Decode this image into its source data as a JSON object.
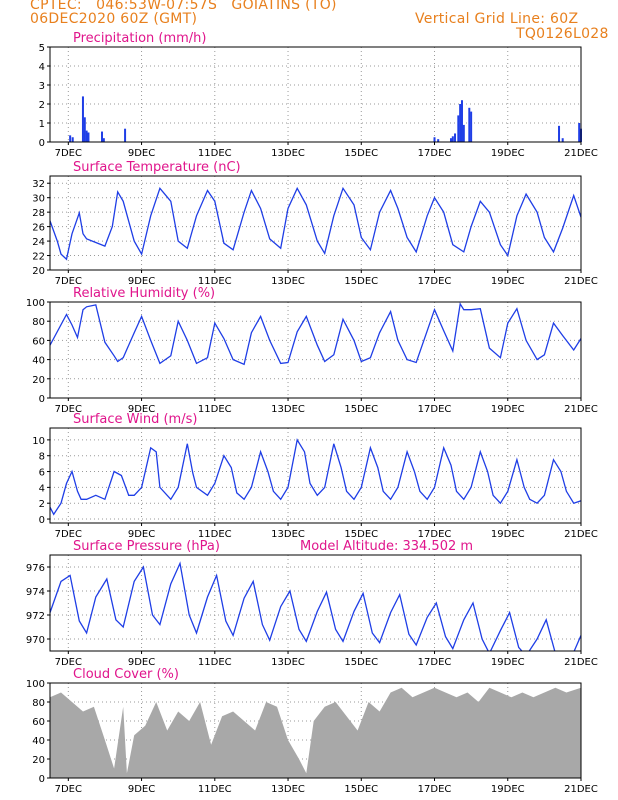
{
  "header": {
    "line1_left": "CPTEC:   046:53W-07:57S   GOIATINS (TO)",
    "line2_left": "06DEC2020 60Z (GMT)",
    "line2_right": "Vertical Grid Line: 60Z",
    "line3_right": "TQ0126L028"
  },
  "colors": {
    "header": "#e8801e",
    "title": "#e0158c",
    "series": "#1f3ee6",
    "cloud": "#a8a8a8",
    "grid": "#9a9a9a"
  },
  "x_axis": {
    "date_labels": [
      "7DEC",
      "9DEC",
      "11DEC",
      "13DEC",
      "15DEC",
      "17DEC",
      "19DEC",
      "21DEC"
    ],
    "start": "06DEC2020 12Z",
    "end": "21DEC2020 00Z"
  },
  "chart_data": [
    {
      "id": "precipitation",
      "type": "bar",
      "title": "Precipitation (mm/h)",
      "ylim": [
        0,
        5
      ],
      "yticks": [
        "0",
        "1",
        "2",
        "3",
        "4",
        "5"
      ],
      "grid": true,
      "bars": [
        {
          "day": 0.55,
          "value": 0.35
        },
        {
          "day": 0.62,
          "value": 0.25
        },
        {
          "day": 0.9,
          "value": 2.4
        },
        {
          "day": 0.95,
          "value": 1.3
        },
        {
          "day": 1.0,
          "value": 0.6
        },
        {
          "day": 1.05,
          "value": 0.5
        },
        {
          "day": 1.42,
          "value": 0.55
        },
        {
          "day": 1.47,
          "value": 0.2
        },
        {
          "day": 2.05,
          "value": 0.7
        },
        {
          "day": 10.5,
          "value": 0.25
        },
        {
          "day": 10.6,
          "value": 0.15
        },
        {
          "day": 10.95,
          "value": 0.2
        },
        {
          "day": 11.0,
          "value": 0.3
        },
        {
          "day": 11.06,
          "value": 0.45
        },
        {
          "day": 11.15,
          "value": 1.4
        },
        {
          "day": 11.2,
          "value": 2.0
        },
        {
          "day": 11.25,
          "value": 2.2
        },
        {
          "day": 11.3,
          "value": 0.9
        },
        {
          "day": 11.45,
          "value": 1.8
        },
        {
          "day": 11.5,
          "value": 1.6
        },
        {
          "day": 13.9,
          "value": 0.85
        },
        {
          "day": 14.0,
          "value": 0.2
        },
        {
          "day": 14.45,
          "value": 1.0
        },
        {
          "day": 14.5,
          "value": 0.7
        }
      ]
    },
    {
      "id": "temperature",
      "type": "line",
      "title": "Surface Temperature (nC)",
      "ylim": [
        20,
        33
      ],
      "yticks": [
        "20",
        "22",
        "24",
        "26",
        "28",
        "30",
        "32"
      ],
      "grid": true,
      "x": [
        0,
        0.2,
        0.3,
        0.45,
        0.6,
        0.8,
        0.9,
        1.0,
        1.25,
        1.5,
        1.7,
        1.85,
        2.0,
        2.3,
        2.5,
        2.75,
        3.0,
        3.3,
        3.5,
        3.75,
        4.0,
        4.3,
        4.5,
        4.75,
        5.0,
        5.3,
        5.5,
        5.75,
        6.0,
        6.3,
        6.5,
        6.75,
        7.0,
        7.3,
        7.5,
        7.75,
        8.0,
        8.3,
        8.5,
        8.75,
        9.0,
        9.3,
        9.5,
        9.75,
        10.0,
        10.3,
        10.5,
        10.75,
        11.0,
        11.3,
        11.5,
        11.75,
        12.0,
        12.3,
        12.5,
        12.75,
        13.0,
        13.3,
        13.5,
        13.75,
        14.0,
        14.3,
        14.5
      ],
      "y": [
        26.8,
        24,
        22.2,
        21.5,
        25,
        27.9,
        25,
        24.3,
        23.8,
        23.3,
        26,
        30.8,
        29.5,
        24,
        22.2,
        27.5,
        31.3,
        29.5,
        24,
        23,
        27.5,
        31,
        29.5,
        23.7,
        22.8,
        28,
        31,
        28.5,
        24.3,
        23,
        28.5,
        31.3,
        29,
        24,
        22.3,
        27.5,
        31.3,
        29,
        24.5,
        22.8,
        28,
        31,
        28.5,
        24.5,
        22.5,
        27.5,
        30,
        28,
        23.5,
        22.5,
        26,
        29.5,
        28,
        23.5,
        22,
        27.5,
        30.5,
        28,
        24.5,
        22.5,
        25.8,
        30.3,
        27.3
      ]
    },
    {
      "id": "humidity",
      "type": "line",
      "title": "Relative Humidity (%)",
      "ylim": [
        0,
        100
      ],
      "yticks": [
        "0",
        "20",
        "40",
        "60",
        "80",
        "100"
      ],
      "grid": true,
      "x": [
        0,
        0.45,
        0.6,
        0.75,
        0.9,
        1.0,
        1.25,
        1.5,
        1.75,
        1.85,
        2.0,
        2.3,
        2.5,
        2.75,
        3.0,
        3.3,
        3.5,
        3.75,
        4.0,
        4.3,
        4.5,
        4.75,
        5.0,
        5.3,
        5.5,
        5.75,
        6.0,
        6.3,
        6.5,
        6.75,
        7.0,
        7.3,
        7.5,
        7.75,
        8.0,
        8.3,
        8.5,
        8.75,
        9.0,
        9.3,
        9.5,
        9.75,
        10.0,
        10.3,
        10.5,
        10.75,
        11.0,
        11.2,
        11.3,
        11.5,
        11.75,
        12.0,
        12.3,
        12.5,
        12.75,
        13.0,
        13.3,
        13.5,
        13.75,
        14.0,
        14.3,
        14.5
      ],
      "y": [
        55,
        87,
        76,
        63,
        92,
        95,
        97,
        58,
        44,
        38,
        42,
        68,
        85,
        60,
        36,
        44,
        80,
        60,
        36,
        42,
        78,
        62,
        40,
        35,
        68,
        85,
        60,
        36,
        37,
        69,
        85,
        55,
        38,
        45,
        82,
        60,
        38,
        42,
        68,
        90,
        60,
        40,
        37,
        70,
        92,
        70,
        49,
        98,
        92,
        92,
        93,
        52,
        42,
        78,
        93,
        60,
        40,
        45,
        78,
        65,
        50,
        62
      ]
    },
    {
      "id": "wind",
      "type": "line",
      "title": "Surface Wind (m/s)",
      "ylim": [
        -0.5,
        11.5
      ],
      "yticks": [
        "0",
        "2",
        "4",
        "6",
        "8",
        "10"
      ],
      "grid": true,
      "x": [
        0,
        0.1,
        0.3,
        0.45,
        0.6,
        0.75,
        0.85,
        1.0,
        1.25,
        1.5,
        1.75,
        1.95,
        2.15,
        2.3,
        2.5,
        2.75,
        2.9,
        3.0,
        3.3,
        3.5,
        3.75,
        3.9,
        4.0,
        4.3,
        4.5,
        4.75,
        4.95,
        5.1,
        5.3,
        5.5,
        5.75,
        5.95,
        6.1,
        6.3,
        6.5,
        6.75,
        6.95,
        7.1,
        7.3,
        7.5,
        7.75,
        7.95,
        8.1,
        8.3,
        8.5,
        8.75,
        8.95,
        9.1,
        9.3,
        9.5,
        9.75,
        9.95,
        10.1,
        10.3,
        10.5,
        10.75,
        10.95,
        11.1,
        11.3,
        11.5,
        11.75,
        11.95,
        12.1,
        12.3,
        12.5,
        12.75,
        12.95,
        13.1,
        13.3,
        13.5,
        13.75,
        13.95,
        14.1,
        14.3,
        14.5
      ],
      "y": [
        1.5,
        0.6,
        2,
        4.5,
        6,
        3.5,
        2.5,
        2.5,
        3,
        2.5,
        6,
        5.5,
        3,
        3,
        4,
        9,
        8.5,
        4,
        2.5,
        4,
        9.5,
        5.8,
        4,
        3,
        4.5,
        8,
        6.5,
        3.3,
        2.5,
        4,
        8.5,
        6,
        3.5,
        2.5,
        4,
        10,
        8.5,
        4.5,
        3,
        4,
        9.5,
        6.5,
        3.5,
        2.5,
        4,
        9,
        6.5,
        3.5,
        2.5,
        4,
        8.5,
        6,
        3.5,
        2.5,
        4,
        9,
        6.8,
        3.5,
        2.5,
        4,
        8.5,
        6,
        3,
        2,
        3.5,
        7.5,
        4,
        2.5,
        2,
        3,
        7.5,
        6,
        3.5,
        2,
        2.3
      ]
    },
    {
      "id": "pressure",
      "type": "line",
      "title": "Surface Pressure (hPa)",
      "annotation": "Model Altitude: 334.502 m",
      "ylim": [
        969,
        977
      ],
      "yticks": [
        "970",
        "972",
        "974",
        "976"
      ],
      "grid": true,
      "x": [
        0,
        0.3,
        0.55,
        0.8,
        1.0,
        1.25,
        1.55,
        1.8,
        2.0,
        2.3,
        2.55,
        2.8,
        3.0,
        3.3,
        3.55,
        3.8,
        4.0,
        4.3,
        4.55,
        4.8,
        5.0,
        5.3,
        5.55,
        5.8,
        6.0,
        6.3,
        6.55,
        6.8,
        7.0,
        7.3,
        7.55,
        7.8,
        8.0,
        8.3,
        8.55,
        8.8,
        9.0,
        9.3,
        9.55,
        9.8,
        10.0,
        10.3,
        10.55,
        10.8,
        11.0,
        11.3,
        11.55,
        11.8,
        12.0,
        12.3,
        12.55,
        12.8,
        13.0,
        13.3,
        13.55,
        13.8,
        14.0,
        14.3,
        14.5
      ],
      "y": [
        972.2,
        974.8,
        975.3,
        971.5,
        970.5,
        973.5,
        975.0,
        971.6,
        971.0,
        974.8,
        976.0,
        972.0,
        971.2,
        974.6,
        976.3,
        972.0,
        970.5,
        973.5,
        975.3,
        971.5,
        970.3,
        973.4,
        974.8,
        971.2,
        969.9,
        972.7,
        974.0,
        970.8,
        969.8,
        972.3,
        973.9,
        970.8,
        969.8,
        972.3,
        973.8,
        970.5,
        969.7,
        972.2,
        973.7,
        970.4,
        969.5,
        971.8,
        973.0,
        970.2,
        969.2,
        971.6,
        973.0,
        970.0,
        968.8,
        970.7,
        972.2,
        969.3,
        968.6,
        970.0,
        971.6,
        968.8,
        968.4,
        968.9,
        970.3
      ]
    },
    {
      "id": "cloud",
      "type": "bar",
      "title": "Cloud Cover (%)",
      "ylim": [
        0,
        100
      ],
      "yticks": [
        "0",
        "20",
        "40",
        "60",
        "80",
        "100"
      ],
      "grid": true,
      "x": [
        0,
        0.3,
        0.6,
        0.9,
        1.2,
        1.5,
        1.75,
        2.0,
        2.1,
        2.3,
        2.6,
        2.9,
        3.2,
        3.5,
        3.8,
        4.1,
        4.4,
        4.7,
        5.0,
        5.3,
        5.6,
        5.9,
        6.2,
        6.5,
        6.8,
        7.0,
        7.2,
        7.5,
        7.8,
        8.1,
        8.4,
        8.7,
        9.0,
        9.3,
        9.6,
        9.9,
        10.2,
        10.5,
        10.8,
        11.1,
        11.4,
        11.7,
        12.0,
        12.3,
        12.6,
        12.9,
        13.2,
        13.5,
        13.8,
        14.1,
        14.5
      ],
      "y": [
        85,
        90,
        80,
        70,
        75,
        40,
        10,
        75,
        5,
        45,
        55,
        80,
        50,
        70,
        60,
        80,
        35,
        65,
        70,
        60,
        50,
        80,
        75,
        40,
        20,
        5,
        60,
        75,
        80,
        65,
        50,
        80,
        70,
        90,
        95,
        85,
        90,
        95,
        90,
        85,
        90,
        80,
        95,
        90,
        85,
        90,
        85,
        90,
        95,
        90,
        95
      ]
    }
  ]
}
